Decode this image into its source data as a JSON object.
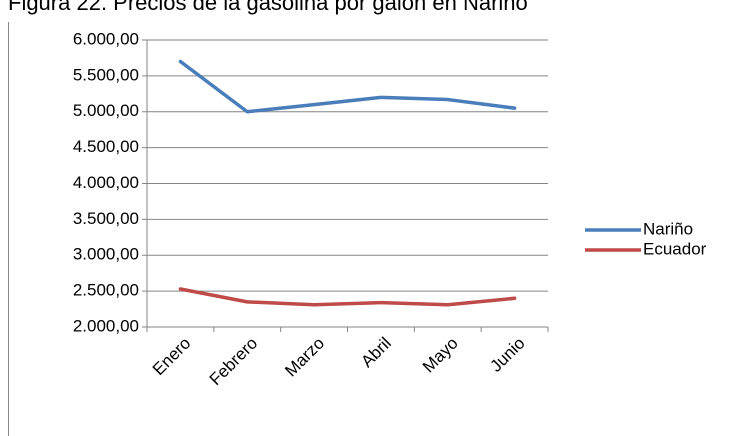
{
  "chart_data": {
    "type": "line",
    "title": "Figura 22. Precios de la gasolina por galón en Nariño",
    "categories": [
      "Enero",
      "Febrero",
      "Marzo",
      "Abril",
      "Mayo",
      "Junio"
    ],
    "series": [
      {
        "name": "Nariño",
        "color": "#4a7ebb",
        "values": [
          5700,
          5000,
          5100,
          5200,
          5170,
          5050
        ]
      },
      {
        "name": "Ecuador",
        "color": "#be4b48",
        "values": [
          2530,
          2350,
          2310,
          2340,
          2310,
          2400
        ]
      }
    ],
    "ylim": [
      2000,
      6000
    ],
    "yticks": [
      {
        "value": 2000,
        "label": "2.000,00"
      },
      {
        "value": 2500,
        "label": "2.500,00"
      },
      {
        "value": 3000,
        "label": "3.000,00"
      },
      {
        "value": 3500,
        "label": "3.500,00"
      },
      {
        "value": 4000,
        "label": "4.000,00"
      },
      {
        "value": 4500,
        "label": "4.500,00"
      },
      {
        "value": 5000,
        "label": "5.000,00"
      },
      {
        "value": 5500,
        "label": "5.500,00"
      },
      {
        "value": 6000,
        "label": "6.000,00"
      }
    ],
    "grid": true,
    "legend": "right"
  }
}
